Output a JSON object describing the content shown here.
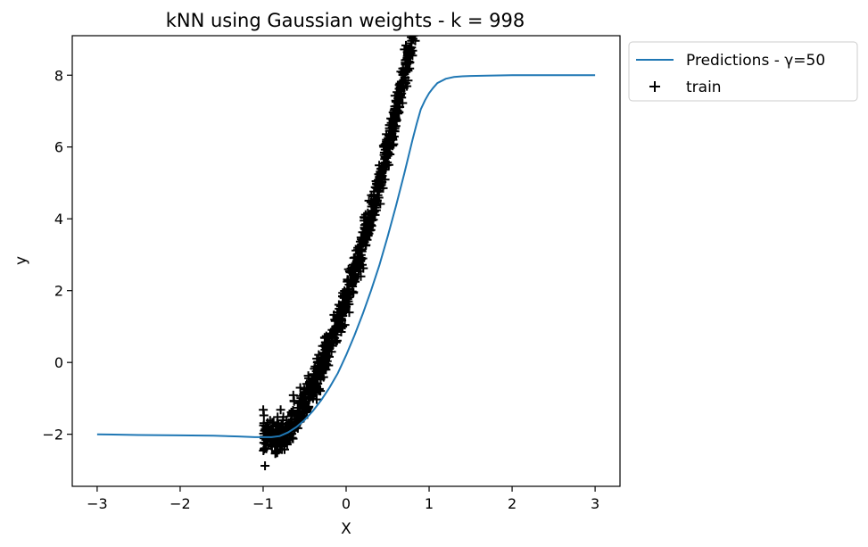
{
  "chart_data": {
    "type": "line",
    "title": "kNN using Gaussian weights - k = 998",
    "xlabel": "X",
    "ylabel": "y",
    "xlim": [
      -3.3,
      3.3
    ],
    "ylim": [
      -3.45,
      9.1
    ],
    "xticks": [
      -3,
      -2,
      -1,
      0,
      1,
      2,
      3
    ],
    "xtick_labels": [
      "−3",
      "−2",
      "−1",
      "0",
      "1",
      "2",
      "3"
    ],
    "yticks": [
      -2,
      0,
      2,
      4,
      6,
      8
    ],
    "ytick_labels": [
      "−2",
      "0",
      "2",
      "4",
      "6",
      "8"
    ],
    "grid": false,
    "legend_position": "outside-top-right",
    "series": [
      {
        "name": "Predictions - γ=50",
        "kind": "line",
        "color": "#1f77b4",
        "x": [
          -3.0,
          -2.5,
          -2.0,
          -1.6,
          -1.3,
          -1.2,
          -1.1,
          -1.0,
          -0.9,
          -0.8,
          -0.7,
          -0.6,
          -0.5,
          -0.4,
          -0.3,
          -0.2,
          -0.1,
          0.0,
          0.1,
          0.2,
          0.3,
          0.4,
          0.5,
          0.6,
          0.7,
          0.8,
          0.85,
          0.9,
          0.95,
          1.0,
          1.05,
          1.1,
          1.2,
          1.3,
          1.4,
          1.5,
          1.7,
          2.0,
          2.5,
          3.0
        ],
        "y": [
          -2.0,
          -2.02,
          -2.03,
          -2.04,
          -2.06,
          -2.07,
          -2.08,
          -2.08,
          -2.08,
          -2.05,
          -1.95,
          -1.8,
          -1.6,
          -1.35,
          -1.05,
          -0.7,
          -0.3,
          0.2,
          0.75,
          1.35,
          2.0,
          2.7,
          3.5,
          4.35,
          5.25,
          6.2,
          6.65,
          7.05,
          7.3,
          7.5,
          7.65,
          7.78,
          7.9,
          7.95,
          7.97,
          7.98,
          7.99,
          8.0,
          8.0,
          8.0
        ]
      },
      {
        "name": "train",
        "kind": "scatter",
        "marker": "plus",
        "color": "#000000",
        "x_range": [
          -1.0,
          1.0
        ],
        "count": 998
      }
    ]
  }
}
